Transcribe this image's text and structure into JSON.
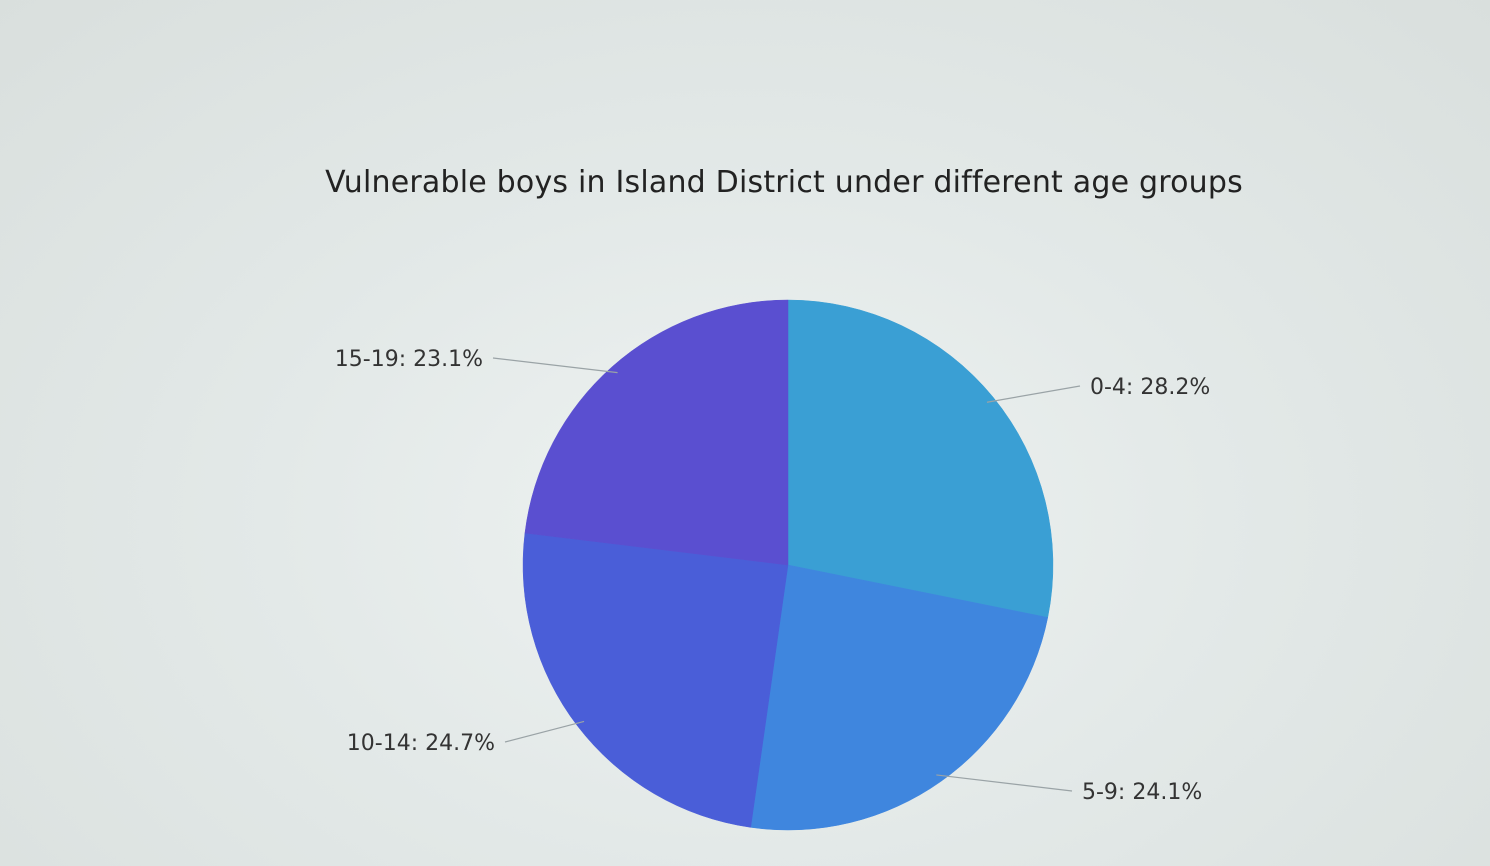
{
  "chart_data": {
    "type": "pie",
    "title": "Vulnerable boys in Island District under different age groups",
    "slices": [
      {
        "label": "0-4",
        "value": 28.2,
        "text": "0-4: 28.2%",
        "color": "#3a9fd4"
      },
      {
        "label": "5-9",
        "value": 24.1,
        "text": "5-9: 24.1%",
        "color": "#3f86de"
      },
      {
        "label": "10-14",
        "value": 24.7,
        "text": "10-14: 24.7%",
        "color": "#4a5ed8"
      },
      {
        "label": "15-19",
        "value": 23.1,
        "text": "15-19: 23.1%",
        "color": "#5a4fd0"
      }
    ],
    "start_angle_deg": 0,
    "direction": "clockwise",
    "legend": "none"
  }
}
